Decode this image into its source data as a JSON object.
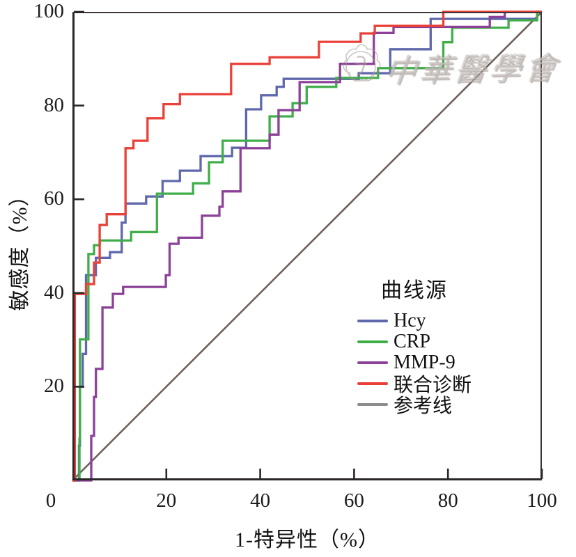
{
  "figure": {
    "x_axis_label": "1-特异性（%）",
    "y_axis_label": "敏感度（%）",
    "x_tick_labels": [
      "0",
      "20",
      "40",
      "60",
      "80",
      "100"
    ],
    "y_tick_labels": [
      "100",
      "80",
      "60",
      "40",
      "20"
    ]
  },
  "legend": {
    "title": "曲线源"
  },
  "watermark": {
    "text": "中華醫學會",
    "logo": "cma-seal-logo"
  },
  "colors": {
    "background": "#ffffff",
    "axis": "#2a2526",
    "frame_top_right": "#3e3536",
    "text": "#1a1a1a"
  },
  "chart_data": {
    "type": "line",
    "subtype": "roc_step_curves",
    "title": "",
    "xlabel": "1-特异性（%）",
    "ylabel": "敏感度（%）",
    "xlim": [
      0,
      100
    ],
    "ylim": [
      0,
      100
    ],
    "x_ticks": [
      0,
      20,
      40,
      60,
      80,
      100
    ],
    "y_ticks": [
      0,
      20,
      40,
      60,
      80,
      100
    ],
    "grid": false,
    "legend_title": "曲线源",
    "legend_position": "center-right",
    "series": [
      {
        "name": "Hcy",
        "color": "#5f68ac",
        "points": [
          [
            0,
            0
          ],
          [
            1.4,
            0
          ],
          [
            1.4,
            7.4
          ],
          [
            1.6,
            7.4
          ],
          [
            1.6,
            20
          ],
          [
            2.2,
            20
          ],
          [
            2.2,
            27
          ],
          [
            2.9,
            27
          ],
          [
            2.9,
            43.8
          ],
          [
            5,
            43.8
          ],
          [
            5,
            47.5
          ],
          [
            8,
            47.5
          ],
          [
            8,
            48.7
          ],
          [
            10.5,
            48.7
          ],
          [
            10.5,
            55
          ],
          [
            11.3,
            55
          ],
          [
            11.3,
            59.1
          ],
          [
            15.7,
            59.1
          ],
          [
            15.7,
            60.6
          ],
          [
            19.2,
            60.6
          ],
          [
            19.2,
            63.9
          ],
          [
            22.9,
            63.9
          ],
          [
            22.9,
            66.1
          ],
          [
            27.3,
            66.1
          ],
          [
            27.3,
            69.2
          ],
          [
            34,
            69.2
          ],
          [
            34,
            71
          ],
          [
            37,
            71
          ],
          [
            37,
            79.2
          ],
          [
            40.2,
            79.2
          ],
          [
            40.2,
            82.2
          ],
          [
            43.5,
            82.2
          ],
          [
            43.5,
            84
          ],
          [
            45,
            84
          ],
          [
            45,
            85.7
          ],
          [
            61,
            85.7
          ],
          [
            61,
            86.9
          ],
          [
            67.7,
            86.9
          ],
          [
            67.7,
            92
          ],
          [
            76.3,
            92
          ],
          [
            76.3,
            98.5
          ],
          [
            99,
            98.5
          ],
          [
            99,
            100
          ],
          [
            100,
            100
          ]
        ]
      },
      {
        "name": "CRP",
        "color": "#3fae49",
        "points": [
          [
            0,
            0
          ],
          [
            1.5,
            0
          ],
          [
            1.5,
            8.9
          ],
          [
            1.6,
            8.9
          ],
          [
            1.6,
            30.1
          ],
          [
            3.4,
            30.1
          ],
          [
            3.4,
            48.3
          ],
          [
            4.6,
            48.3
          ],
          [
            4.6,
            50.2
          ],
          [
            5.8,
            50.2
          ],
          [
            5.8,
            51.2
          ],
          [
            12.5,
            51.2
          ],
          [
            12.5,
            53
          ],
          [
            18,
            53
          ],
          [
            18,
            61.2
          ],
          [
            25.7,
            61.2
          ],
          [
            25.7,
            63.4
          ],
          [
            29.1,
            63.4
          ],
          [
            29.1,
            67.9
          ],
          [
            32,
            67.9
          ],
          [
            32,
            72.5
          ],
          [
            42,
            72.5
          ],
          [
            42,
            77.7
          ],
          [
            46.9,
            77.7
          ],
          [
            46.9,
            80.5
          ],
          [
            49.9,
            80.5
          ],
          [
            49.9,
            84
          ],
          [
            56.2,
            84
          ],
          [
            56.2,
            85.9
          ],
          [
            65.1,
            85.9
          ],
          [
            65.1,
            88
          ],
          [
            79,
            88
          ],
          [
            79,
            93.5
          ],
          [
            80.9,
            93.5
          ],
          [
            80.9,
            96.6
          ],
          [
            92.9,
            96.6
          ],
          [
            92.9,
            98.2
          ],
          [
            99,
            98.2
          ],
          [
            99,
            100
          ],
          [
            100,
            100
          ]
        ]
      },
      {
        "name": "MMP-9",
        "color": "#8c4198",
        "points": [
          [
            0,
            0
          ],
          [
            4,
            0
          ],
          [
            4,
            9.5
          ],
          [
            4.6,
            9.5
          ],
          [
            4.6,
            17.8
          ],
          [
            5,
            17.8
          ],
          [
            5,
            23.8
          ],
          [
            6.4,
            23.8
          ],
          [
            6.4,
            36.9
          ],
          [
            8.6,
            36.9
          ],
          [
            8.6,
            39.8
          ],
          [
            10.8,
            39.8
          ],
          [
            10.8,
            41.3
          ],
          [
            19.9,
            41.3
          ],
          [
            19.9,
            43.8
          ],
          [
            20.7,
            43.8
          ],
          [
            20.7,
            50.5
          ],
          [
            22.6,
            50.5
          ],
          [
            22.6,
            51.8
          ],
          [
            27.6,
            51.8
          ],
          [
            27.6,
            56.5
          ],
          [
            31.3,
            56.5
          ],
          [
            31.3,
            58.4
          ],
          [
            32,
            58.4
          ],
          [
            32,
            61.7
          ],
          [
            35.8,
            61.7
          ],
          [
            35.8,
            70.9
          ],
          [
            42,
            70.9
          ],
          [
            42,
            73.8
          ],
          [
            43.9,
            73.8
          ],
          [
            43.9,
            79
          ],
          [
            48.4,
            79
          ],
          [
            48.4,
            85
          ],
          [
            57,
            85
          ],
          [
            57,
            88.9
          ],
          [
            64.2,
            88.9
          ],
          [
            64.2,
            95.5
          ],
          [
            68.4,
            95.5
          ],
          [
            68.4,
            96.8
          ],
          [
            88.9,
            96.8
          ],
          [
            88.9,
            98.9
          ],
          [
            92.1,
            98.9
          ],
          [
            92.1,
            100
          ],
          [
            100,
            100
          ]
        ]
      },
      {
        "name": "联合诊断",
        "color": "#e94138",
        "points": [
          [
            0,
            0
          ],
          [
            0.5,
            0
          ],
          [
            0.5,
            39.8
          ],
          [
            2.9,
            39.8
          ],
          [
            2.9,
            41.9
          ],
          [
            4.6,
            41.9
          ],
          [
            4.6,
            46.5
          ],
          [
            5.8,
            46.5
          ],
          [
            5.8,
            54.5
          ],
          [
            7.3,
            54.5
          ],
          [
            7.3,
            56.8
          ],
          [
            11.3,
            56.8
          ],
          [
            11.3,
            70.9
          ],
          [
            13,
            70.9
          ],
          [
            13,
            72.5
          ],
          [
            16,
            72.5
          ],
          [
            16,
            77.3
          ],
          [
            19.4,
            77.3
          ],
          [
            19.4,
            80.3
          ],
          [
            22.9,
            80.3
          ],
          [
            22.9,
            82.4
          ],
          [
            33.8,
            82.4
          ],
          [
            33.8,
            88.9
          ],
          [
            42,
            88.9
          ],
          [
            42,
            90.3
          ],
          [
            52.5,
            90.3
          ],
          [
            52.5,
            93.6
          ],
          [
            61.4,
            93.6
          ],
          [
            61.4,
            95.4
          ],
          [
            64.4,
            95.4
          ],
          [
            64.4,
            97
          ],
          [
            79,
            97
          ],
          [
            79,
            100
          ],
          [
            100,
            100
          ]
        ]
      },
      {
        "name": "参考线",
        "color": "#8d8d8d",
        "line_color": "#6f6059",
        "is_reference": true,
        "points": [
          [
            0,
            0
          ],
          [
            100,
            100
          ]
        ]
      }
    ]
  }
}
